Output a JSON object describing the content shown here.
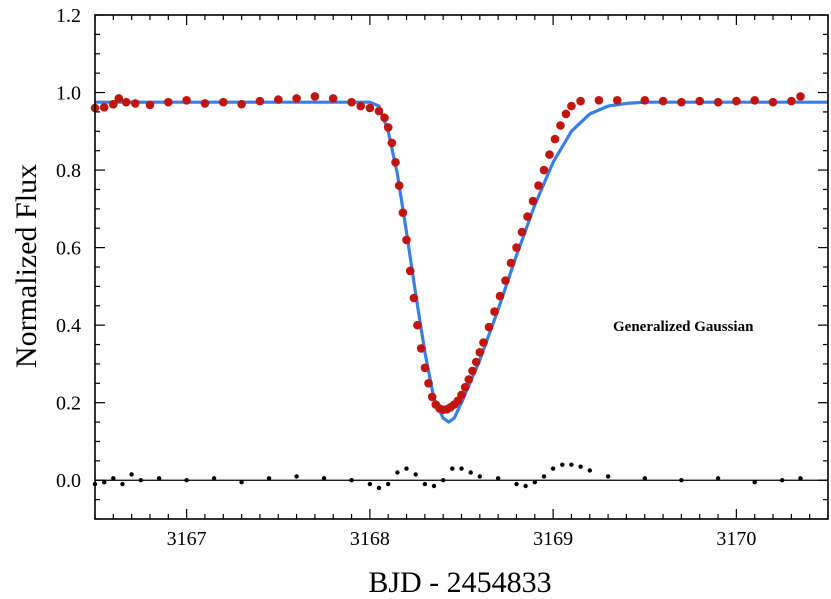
{
  "chart_data": {
    "type": "scatter",
    "xlabel": "BJD - 2454833",
    "ylabel": "Normalized Flux",
    "annotation": "Generalized Gaussian",
    "xlim": [
      3166.5,
      3170.5
    ],
    "ylim": [
      -0.1,
      1.2
    ],
    "x_ticks": [
      3167,
      3168,
      3169,
      3170
    ],
    "x_tick_labels": [
      "3167",
      "3168",
      "3169",
      "3170"
    ],
    "y_ticks": [
      0.0,
      0.2,
      0.4,
      0.6,
      0.8,
      1.0,
      1.2
    ],
    "y_tick_labels": [
      "0.0",
      "0.2",
      "0.4",
      "0.6",
      "0.8",
      "1.0",
      "1.2"
    ],
    "grid": false,
    "legend": "none",
    "colors": {
      "data": "#c0160f",
      "model": "#3a7fe6",
      "residuals": "#000000",
      "axes": "#000000"
    },
    "series": [
      {
        "kind": "markers",
        "color": "#c0160f",
        "points": [
          [
            3166.5,
            0.96
          ],
          [
            3166.55,
            0.962
          ],
          [
            3166.6,
            0.97
          ],
          [
            3166.63,
            0.985
          ],
          [
            3166.67,
            0.975
          ],
          [
            3166.72,
            0.972
          ],
          [
            3166.8,
            0.968
          ],
          [
            3166.9,
            0.975
          ],
          [
            3167.0,
            0.98
          ],
          [
            3167.1,
            0.972
          ],
          [
            3167.2,
            0.975
          ],
          [
            3167.3,
            0.97
          ],
          [
            3167.4,
            0.978
          ],
          [
            3167.5,
            0.982
          ],
          [
            3167.6,
            0.985
          ],
          [
            3167.7,
            0.99
          ],
          [
            3167.8,
            0.985
          ],
          [
            3167.9,
            0.975
          ],
          [
            3167.95,
            0.965
          ],
          [
            3168.0,
            0.96
          ],
          [
            3168.05,
            0.952
          ],
          [
            3168.08,
            0.935
          ],
          [
            3168.1,
            0.91
          ],
          [
            3168.12,
            0.87
          ],
          [
            3168.14,
            0.82
          ],
          [
            3168.16,
            0.76
          ],
          [
            3168.18,
            0.69
          ],
          [
            3168.2,
            0.62
          ],
          [
            3168.22,
            0.54
          ],
          [
            3168.24,
            0.47
          ],
          [
            3168.26,
            0.4
          ],
          [
            3168.28,
            0.34
          ],
          [
            3168.3,
            0.29
          ],
          [
            3168.32,
            0.25
          ],
          [
            3168.34,
            0.215
          ],
          [
            3168.36,
            0.195
          ],
          [
            3168.38,
            0.185
          ],
          [
            3168.4,
            0.182
          ],
          [
            3168.42,
            0.183
          ],
          [
            3168.44,
            0.188
          ],
          [
            3168.46,
            0.195
          ],
          [
            3168.48,
            0.205
          ],
          [
            3168.5,
            0.22
          ],
          [
            3168.52,
            0.24
          ],
          [
            3168.54,
            0.26
          ],
          [
            3168.56,
            0.282
          ],
          [
            3168.58,
            0.305
          ],
          [
            3168.6,
            0.33
          ],
          [
            3168.62,
            0.355
          ],
          [
            3168.65,
            0.395
          ],
          [
            3168.68,
            0.435
          ],
          [
            3168.71,
            0.475
          ],
          [
            3168.74,
            0.515
          ],
          [
            3168.77,
            0.56
          ],
          [
            3168.8,
            0.6
          ],
          [
            3168.83,
            0.64
          ],
          [
            3168.86,
            0.68
          ],
          [
            3168.89,
            0.72
          ],
          [
            3168.92,
            0.76
          ],
          [
            3168.95,
            0.8
          ],
          [
            3168.98,
            0.84
          ],
          [
            3169.01,
            0.88
          ],
          [
            3169.04,
            0.915
          ],
          [
            3169.07,
            0.945
          ],
          [
            3169.1,
            0.965
          ],
          [
            3169.15,
            0.978
          ],
          [
            3169.25,
            0.98
          ],
          [
            3169.35,
            0.98
          ],
          [
            3169.5,
            0.98
          ],
          [
            3169.6,
            0.978
          ],
          [
            3169.7,
            0.975
          ],
          [
            3169.8,
            0.978
          ],
          [
            3169.9,
            0.975
          ],
          [
            3170.0,
            0.978
          ],
          [
            3170.1,
            0.98
          ],
          [
            3170.2,
            0.975
          ],
          [
            3170.3,
            0.978
          ],
          [
            3170.35,
            0.99
          ]
        ]
      },
      {
        "kind": "line",
        "color": "#3a7fe6",
        "points": [
          [
            3166.5,
            0.975
          ],
          [
            3168.0,
            0.975
          ],
          [
            3168.05,
            0.965
          ],
          [
            3168.1,
            0.9
          ],
          [
            3168.15,
            0.79
          ],
          [
            3168.2,
            0.64
          ],
          [
            3168.25,
            0.48
          ],
          [
            3168.3,
            0.33
          ],
          [
            3168.35,
            0.21
          ],
          [
            3168.4,
            0.16
          ],
          [
            3168.43,
            0.15
          ],
          [
            3168.46,
            0.16
          ],
          [
            3168.5,
            0.2
          ],
          [
            3168.6,
            0.31
          ],
          [
            3168.7,
            0.44
          ],
          [
            3168.8,
            0.58
          ],
          [
            3168.9,
            0.71
          ],
          [
            3169.0,
            0.82
          ],
          [
            3169.1,
            0.9
          ],
          [
            3169.2,
            0.945
          ],
          [
            3169.3,
            0.965
          ],
          [
            3169.4,
            0.972
          ],
          [
            3169.5,
            0.975
          ],
          [
            3170.5,
            0.975
          ]
        ]
      },
      {
        "kind": "residual-markers",
        "color": "#000000",
        "points": [
          [
            3166.5,
            -0.01
          ],
          [
            3166.55,
            -0.005
          ],
          [
            3166.6,
            0.005
          ],
          [
            3166.65,
            -0.01
          ],
          [
            3166.7,
            0.015
          ],
          [
            3166.75,
            0.0
          ],
          [
            3166.85,
            0.005
          ],
          [
            3167.0,
            0.0
          ],
          [
            3167.15,
            0.005
          ],
          [
            3167.3,
            -0.005
          ],
          [
            3167.45,
            0.005
          ],
          [
            3167.6,
            0.01
          ],
          [
            3167.75,
            0.005
          ],
          [
            3167.9,
            0.0
          ],
          [
            3168.0,
            -0.01
          ],
          [
            3168.05,
            -0.02
          ],
          [
            3168.1,
            -0.01
          ],
          [
            3168.15,
            0.02
          ],
          [
            3168.2,
            0.03
          ],
          [
            3168.25,
            0.015
          ],
          [
            3168.3,
            -0.01
          ],
          [
            3168.35,
            -0.015
          ],
          [
            3168.4,
            0.0
          ],
          [
            3168.45,
            0.03
          ],
          [
            3168.5,
            0.03
          ],
          [
            3168.55,
            0.02
          ],
          [
            3168.6,
            0.01
          ],
          [
            3168.7,
            0.005
          ],
          [
            3168.8,
            -0.01
          ],
          [
            3168.85,
            -0.015
          ],
          [
            3168.9,
            -0.005
          ],
          [
            3168.95,
            0.01
          ],
          [
            3169.0,
            0.03
          ],
          [
            3169.05,
            0.04
          ],
          [
            3169.1,
            0.04
          ],
          [
            3169.15,
            0.035
          ],
          [
            3169.2,
            0.025
          ],
          [
            3169.3,
            0.01
          ],
          [
            3169.5,
            0.005
          ],
          [
            3169.7,
            0.0
          ],
          [
            3169.9,
            0.005
          ],
          [
            3170.1,
            -0.005
          ],
          [
            3170.25,
            0.0
          ],
          [
            3170.35,
            0.005
          ]
        ]
      }
    ]
  }
}
